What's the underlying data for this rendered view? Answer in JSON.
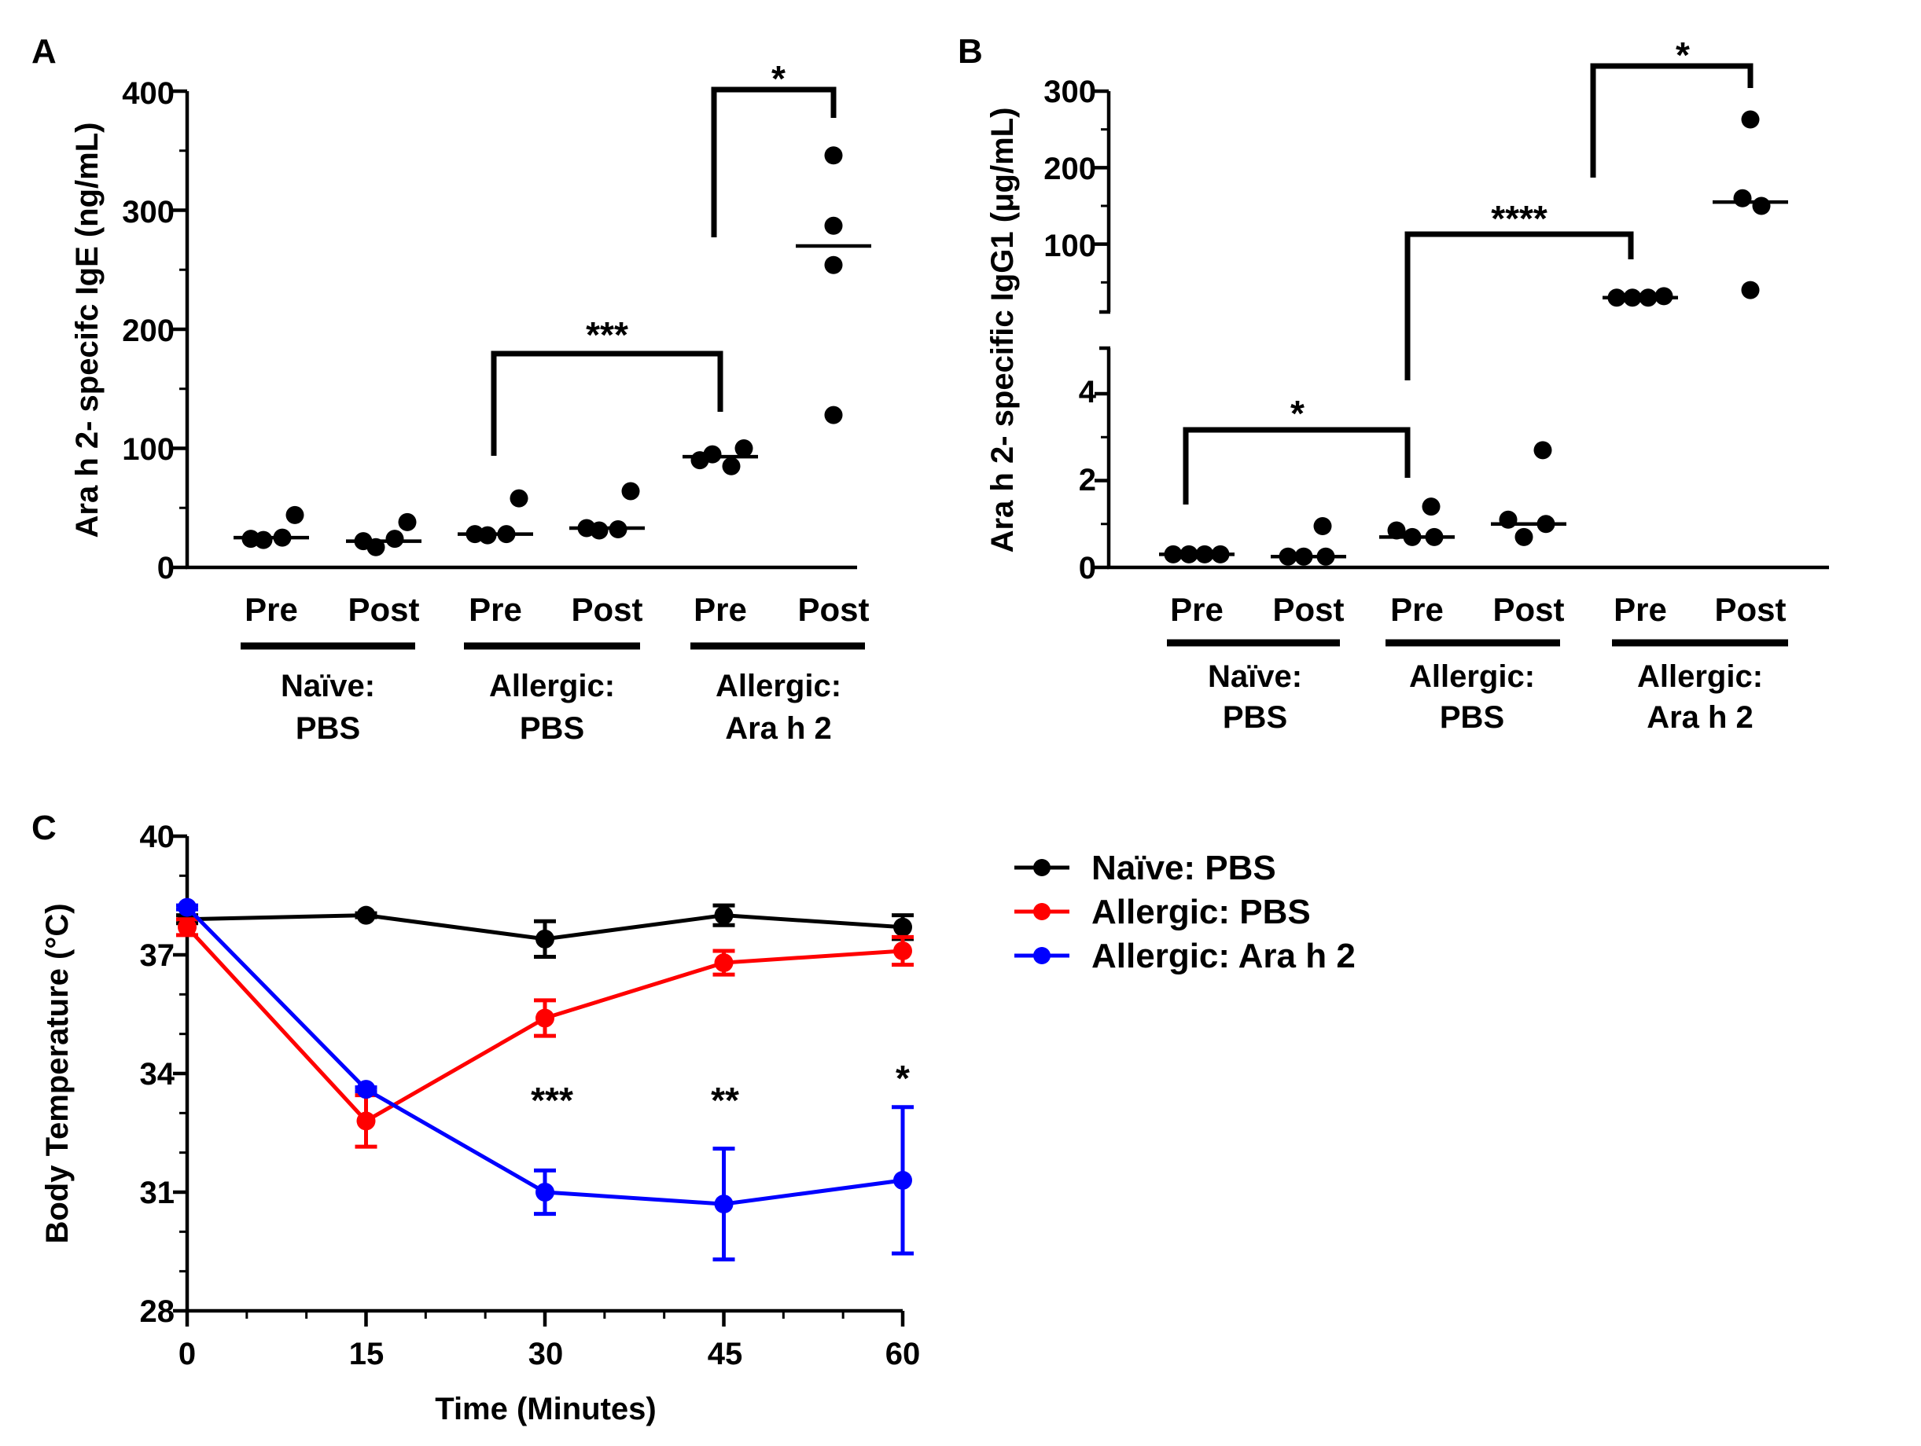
{
  "panels": {
    "A": {
      "letter": "A",
      "ylabel": "Ara h 2- specifc IgE (ng/mL)",
      "yticks": [
        "0",
        "100",
        "200",
        "300",
        "400"
      ],
      "groups": [
        {
          "pre": "Pre",
          "post": "Post",
          "line1": "Naïve:",
          "line2": "PBS"
        },
        {
          "pre": "Pre",
          "post": "Post",
          "line1": "Allergic:",
          "line2": "PBS"
        },
        {
          "pre": "Pre",
          "post": "Post",
          "line1": "Allergic:",
          "line2": "Ara h 2"
        }
      ],
      "sig": [
        "***",
        "*"
      ]
    },
    "B": {
      "letter": "B",
      "ylabel": "Ara h 2- specific IgG1 (μg/mL)",
      "yticks_lower": [
        "0",
        "2",
        "4"
      ],
      "yticks_upper": [
        "100",
        "200",
        "300"
      ],
      "groups": [
        {
          "pre": "Pre",
          "post": "Post",
          "line1": "Naïve:",
          "line2": "PBS"
        },
        {
          "pre": "Pre",
          "post": "Post",
          "line1": "Allergic:",
          "line2": "PBS"
        },
        {
          "pre": "Pre",
          "post": "Post",
          "line1": "Allergic:",
          "line2": "Ara h 2"
        }
      ],
      "sig": [
        "*",
        "****",
        "*"
      ]
    },
    "C": {
      "letter": "C",
      "xlabel": "Time (Minutes)",
      "ylabel": "Body Temperature (°C)",
      "xticks": [
        "0",
        "15",
        "30",
        "45",
        "60"
      ],
      "yticks": [
        "28",
        "31",
        "34",
        "37",
        "40"
      ],
      "sig": [
        "***",
        "**",
        "*"
      ],
      "legend": [
        "Naïve: PBS",
        "Allergic: PBS",
        "Allergic: Ara h 2"
      ]
    }
  },
  "chart_data": [
    {
      "type": "scatter",
      "panel": "A",
      "ylabel": "Ara h 2- specifc IgE (ng/mL)",
      "ylim": [
        0,
        400
      ],
      "categories": [
        "Naïve: PBS Pre",
        "Naïve: PBS Post",
        "Allergic: PBS Pre",
        "Allergic: PBS Post",
        "Allergic: Ara h 2 Pre",
        "Allergic: Ara h 2 Post"
      ],
      "points": [
        [
          24,
          44,
          23,
          25
        ],
        [
          22,
          38,
          17,
          24
        ],
        [
          28,
          58,
          27,
          28
        ],
        [
          33,
          64,
          31,
          32
        ],
        [
          90,
          100,
          95,
          85
        ],
        [
          346,
          287,
          254,
          128
        ]
      ],
      "medians": [
        25,
        22,
        28,
        33,
        93,
        270
      ],
      "significance": [
        {
          "from": "Allergic: PBS Pre",
          "to": "Allergic: Ara h 2 Pre",
          "label": "***"
        },
        {
          "from": "Allergic: Ara h 2 Pre",
          "to": "Allergic: Ara h 2 Post",
          "label": "*"
        }
      ]
    },
    {
      "type": "scatter",
      "panel": "B",
      "ylabel": "Ara h 2- specific IgG1 (μg/mL)",
      "ylim_lower": [
        0,
        5
      ],
      "ylim_upper": [
        0,
        300
      ],
      "axis_break": true,
      "categories": [
        "Naïve: PBS Pre",
        "Naïve: PBS Post",
        "Allergic: PBS Pre",
        "Allergic: PBS Post",
        "Allergic: Ara h 2 Pre",
        "Allergic: Ara h 2 Post"
      ],
      "points": [
        [
          0.3,
          0.3,
          0.3,
          0.3
        ],
        [
          0.25,
          0.95,
          0.25,
          0.25
        ],
        [
          0.85,
          1.4,
          0.7,
          0.7
        ],
        [
          1.1,
          2.7,
          0.7,
          1.0
        ],
        [
          30,
          30,
          30,
          32
        ],
        [
          40,
          160,
          150,
          263
        ]
      ],
      "medians": [
        0.3,
        0.25,
        0.7,
        1.0,
        30,
        155
      ],
      "significance": [
        {
          "from": "Naïve: PBS Pre",
          "to": "Allergic: PBS Pre",
          "label": "*"
        },
        {
          "from": "Allergic: PBS Pre",
          "to": "Allergic: Ara h 2 Pre",
          "label": "****"
        },
        {
          "from": "Allergic: Ara h 2 Pre",
          "to": "Allergic: Ara h 2 Post",
          "label": "*"
        }
      ]
    },
    {
      "type": "line",
      "panel": "C",
      "xlabel": "Time (Minutes)",
      "ylabel": "Body Temperature (°C)",
      "x": [
        0,
        15,
        30,
        45,
        60
      ],
      "xlim": [
        0,
        60
      ],
      "ylim": [
        28,
        40
      ],
      "series": [
        {
          "name": "Naïve: PBS",
          "color": "#000000",
          "values": [
            37.9,
            38.0,
            37.4,
            38.0,
            37.7
          ],
          "error": [
            0.1,
            0.05,
            0.45,
            0.25,
            0.3
          ]
        },
        {
          "name": "Allergic: PBS",
          "color": "#ff0000",
          "values": [
            37.7,
            32.8,
            35.4,
            36.8,
            37.1
          ],
          "error": [
            0.2,
            0.65,
            0.45,
            0.3,
            0.35
          ]
        },
        {
          "name": "Allergic: Ara h 2",
          "color": "#0000ff",
          "values": [
            38.2,
            33.6,
            31.0,
            30.7,
            31.3
          ],
          "error": [
            0.05,
            0.05,
            0.55,
            1.4,
            1.85
          ]
        }
      ],
      "annotations": [
        {
          "x": 30,
          "label": "***"
        },
        {
          "x": 45,
          "label": "**"
        },
        {
          "x": 60,
          "label": "*"
        }
      ]
    }
  ]
}
